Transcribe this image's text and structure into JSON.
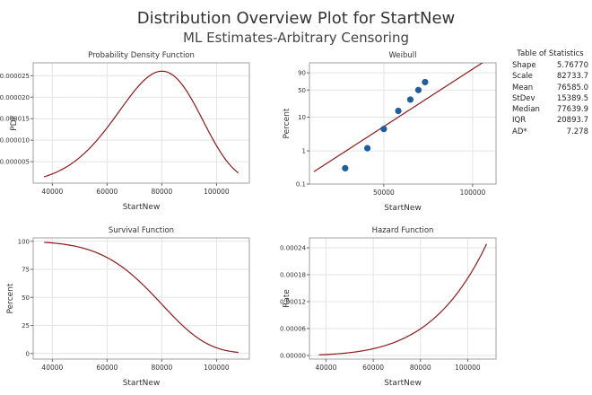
{
  "title": "Distribution Overview Plot for StartNew",
  "subtitle": "ML Estimates-Arbitrary Censoring",
  "colors": {
    "curve": "#8b1a1a",
    "points": "#1f5fa0",
    "grid": "#e3e3e3",
    "frame": "#a0a0a0"
  },
  "statistics": {
    "title": "Table of Statistics",
    "rows": [
      {
        "label": "Shape",
        "value": "5.76770"
      },
      {
        "label": "Scale",
        "value": "82733.7"
      },
      {
        "label": "Mean",
        "value": "76585.0"
      },
      {
        "label": "StDev",
        "value": "15389.5"
      },
      {
        "label": "Median",
        "value": "77639.9"
      },
      {
        "label": "IQR",
        "value": "20893.7"
      },
      {
        "label": "AD*",
        "value": "7.278"
      }
    ]
  },
  "chart_data": [
    {
      "type": "line",
      "title": "Probability Density Function",
      "xlabel": "StartNew",
      "ylabel": "PDF",
      "distribution": {
        "family": "weibull",
        "shape": 5.7677,
        "scale": 82733.7,
        "function": "pdf"
      },
      "xlim": [
        33000,
        112000
      ],
      "ylim": [
        0,
        2.8e-05
      ],
      "curve_x_range": [
        37000,
        108000
      ],
      "xticks": [
        40000,
        60000,
        80000,
        100000
      ],
      "xtick_labels": [
        "40000",
        "60000",
        "80000",
        "100000"
      ],
      "yticks": [
        5e-06,
        1e-05,
        1.5e-05,
        2e-05,
        2.5e-05
      ],
      "ytick_labels": [
        "0.000005",
        "0.000010",
        "0.000015",
        "0.000020",
        "0.000025"
      ],
      "grid": true
    },
    {
      "type": "scatter",
      "title": "Weibull",
      "xlabel": "StartNew",
      "ylabel": "Percent",
      "xscale": "log",
      "yscale": "weibull",
      "distribution": {
        "family": "weibull",
        "shape": 5.7677,
        "scale": 82733.7,
        "function": "cdf"
      },
      "xlim": [
        28000,
        120000
      ],
      "ylim": [
        0.1,
        99
      ],
      "fit_line_x_range": [
        29000,
        120000
      ],
      "points": [
        {
          "x": 37000,
          "y": 0.3
        },
        {
          "x": 44000,
          "y": 1.2
        },
        {
          "x": 50000,
          "y": 4.5
        },
        {
          "x": 56000,
          "y": 15
        },
        {
          "x": 61500,
          "y": 30
        },
        {
          "x": 65500,
          "y": 50
        },
        {
          "x": 69000,
          "y": 70
        }
      ],
      "xticks": [
        50000,
        100000
      ],
      "xtick_labels": [
        "50000",
        "100000"
      ],
      "yticks": [
        0.1,
        1,
        10,
        50,
        90
      ],
      "ytick_labels": [
        "0.1",
        "1",
        "10",
        "50",
        "90"
      ],
      "grid": true
    },
    {
      "type": "line",
      "title": "Survival Function",
      "xlabel": "StartNew",
      "ylabel": "Percent",
      "distribution": {
        "family": "weibull",
        "shape": 5.7677,
        "scale": 82733.7,
        "function": "survival"
      },
      "xlim": [
        33000,
        112000
      ],
      "ylim": [
        -5,
        103
      ],
      "curve_x_range": [
        37000,
        108000
      ],
      "xticks": [
        40000,
        60000,
        80000,
        100000
      ],
      "xtick_labels": [
        "40000",
        "60000",
        "80000",
        "100000"
      ],
      "yticks": [
        0,
        25,
        50,
        75,
        100
      ],
      "ytick_labels": [
        "0",
        "25",
        "50",
        "75",
        "100"
      ],
      "grid": true
    },
    {
      "type": "line",
      "title": "Hazard Function",
      "xlabel": "StartNew",
      "ylabel": "Rate",
      "distribution": {
        "family": "weibull",
        "shape": 5.7677,
        "scale": 82733.7,
        "function": "hazard"
      },
      "xlim": [
        33000,
        112000
      ],
      "ylim": [
        -8e-06,
        0.000262
      ],
      "curve_x_range": [
        37000,
        108000
      ],
      "xticks": [
        40000,
        60000,
        80000,
        100000
      ],
      "xtick_labels": [
        "40000",
        "60000",
        "80000",
        "100000"
      ],
      "yticks": [
        0,
        6e-05,
        0.00012,
        0.00018,
        0.00024
      ],
      "ytick_labels": [
        "0.00000",
        "0.00006",
        "0.00012",
        "0.00018",
        "0.00024"
      ],
      "grid": true
    }
  ]
}
